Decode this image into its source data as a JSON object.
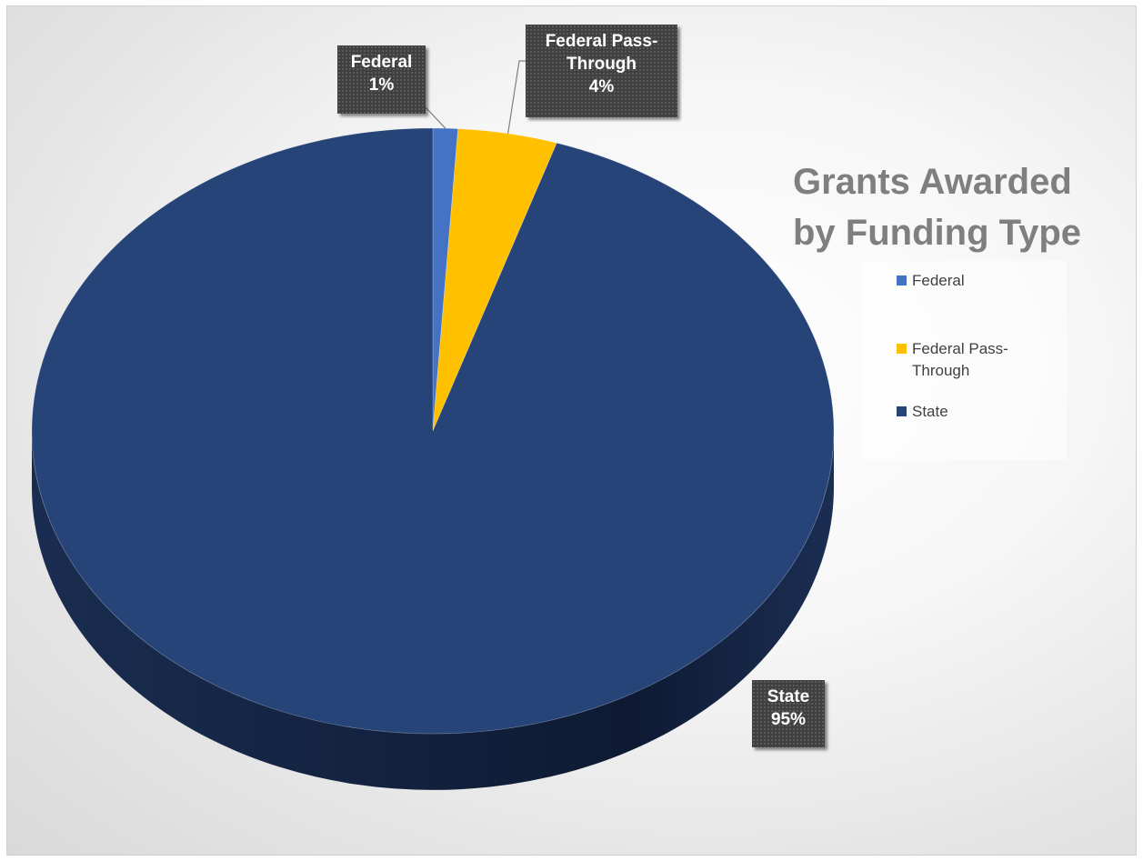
{
  "chart_data": {
    "type": "pie",
    "title": "Grants Awarded by Funding Type",
    "categories": [
      "Federal",
      "Federal Pass-Through",
      "State"
    ],
    "values": [
      1,
      4,
      95
    ],
    "value_labels": [
      "1%",
      "4%",
      "95%"
    ],
    "colors": [
      "#4472c4",
      "#ffc000",
      "#264478"
    ],
    "legend_position": "right",
    "style": "3d-pie",
    "data_labels": "category-and-percent"
  }
}
